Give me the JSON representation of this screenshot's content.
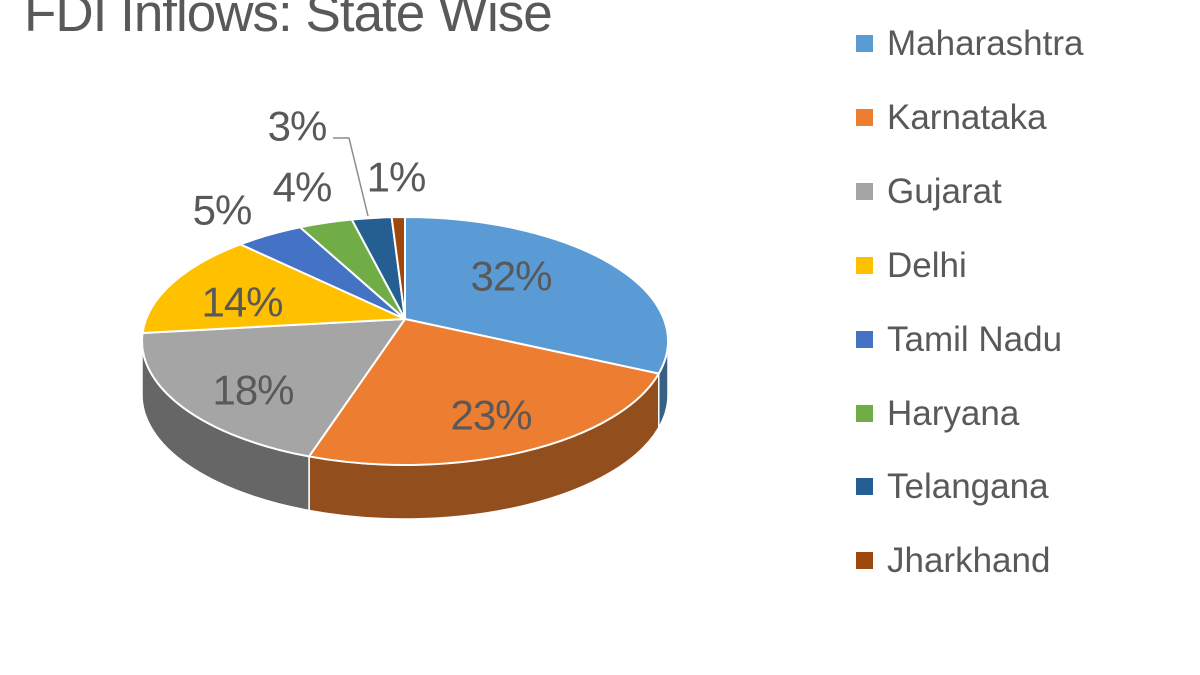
{
  "chart_data": {
    "type": "pie",
    "style": "3d",
    "title": "FDI Inflows: State Wise",
    "categories": [
      "Maharashtra",
      "Karnataka",
      "Gujarat",
      "Delhi",
      "Tamil Nadu",
      "Haryana",
      "Telangana",
      "Jharkhand"
    ],
    "values": [
      32,
      23,
      18,
      14,
      5,
      4,
      3,
      1
    ],
    "unit": "%",
    "data_labels": [
      "32%",
      "23%",
      "18%",
      "14%",
      "5%",
      "4%",
      "3%",
      "1%"
    ],
    "colors": [
      "#5B9BD5",
      "#ED7D31",
      "#A5A5A5",
      "#FFC000",
      "#4472C4",
      "#70AD47",
      "#255E91",
      "#9E480E"
    ],
    "legend_position": "right",
    "title_color": "#595959",
    "label_color": "#595959",
    "legend_text_color": "#595959",
    "leader_line_color": "#8C8C8C",
    "background": "#FFFFFF"
  }
}
